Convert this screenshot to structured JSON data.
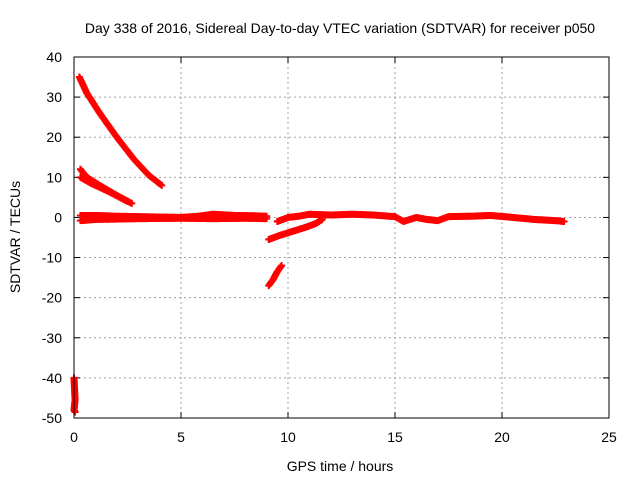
{
  "chart_data": {
    "type": "scatter",
    "title": "Day 338 of 2016, Sidereal Day-to-day VTEC variation (SDTVAR) for receiver p050",
    "xlabel": "GPS time / hours",
    "ylabel": "SDTVAR / TECUs",
    "xlim": [
      0,
      25
    ],
    "ylim": [
      -50,
      40
    ],
    "x_ticks": [
      "0",
      "5",
      "10",
      "15",
      "20",
      "25"
    ],
    "y_ticks": [
      "-50",
      "-40",
      "-30",
      "-20",
      "-10",
      "0",
      "10",
      "20",
      "30",
      "40"
    ],
    "grid": true,
    "marker": "plus",
    "color": "#ff0000",
    "series": [
      {
        "points": [
          [
            0.25,
            35
          ],
          [
            0.6,
            31
          ],
          [
            1.2,
            26
          ],
          [
            2.0,
            20
          ],
          [
            2.8,
            14.5
          ],
          [
            3.5,
            10.5
          ],
          [
            4.1,
            8
          ]
        ]
      },
      {
        "points": [
          [
            0.3,
            12
          ],
          [
            0.6,
            10
          ],
          [
            1.2,
            8
          ],
          [
            2.0,
            5.5
          ],
          [
            2.7,
            3.5
          ]
        ]
      },
      {
        "points": [
          [
            0.3,
            10
          ],
          [
            0.8,
            8.5
          ],
          [
            1.6,
            6.5
          ],
          [
            2.5,
            4
          ]
        ]
      },
      {
        "points": [
          [
            0.3,
            0.5
          ],
          [
            1,
            0.5
          ],
          [
            2,
            0.3
          ],
          [
            3,
            0.2
          ],
          [
            4,
            0.1
          ],
          [
            5,
            0
          ],
          [
            5.8,
            0.3
          ],
          [
            6.5,
            0.8
          ],
          [
            7.5,
            0.5
          ],
          [
            8.5,
            0.4
          ],
          [
            9.0,
            0.3
          ]
        ]
      },
      {
        "points": [
          [
            0.3,
            -0.8
          ],
          [
            1,
            -0.5
          ],
          [
            3,
            -0.3
          ],
          [
            5,
            -0.2
          ],
          [
            6.5,
            -0.3
          ],
          [
            8,
            -0.2
          ],
          [
            9,
            -0.3
          ]
        ]
      },
      {
        "points": [
          [
            9.1,
            -5.5
          ],
          [
            9.6,
            -4.5
          ],
          [
            10.2,
            -3.5
          ],
          [
            10.8,
            -2.5
          ],
          [
            11.3,
            -1.5
          ],
          [
            11.6,
            -0.5
          ]
        ]
      },
      {
        "points": [
          [
            9.1,
            -17
          ],
          [
            9.3,
            -15.5
          ],
          [
            9.5,
            -13.5
          ],
          [
            9.7,
            -12
          ]
        ]
      },
      {
        "points": [
          [
            9.5,
            -1
          ],
          [
            10,
            0
          ],
          [
            10.5,
            0.3
          ],
          [
            11,
            0.8
          ],
          [
            12,
            0.6
          ],
          [
            13,
            0.8
          ],
          [
            14,
            0.6
          ],
          [
            15,
            0.2
          ],
          [
            15.4,
            -1
          ],
          [
            16,
            0
          ],
          [
            16.5,
            -0.5
          ],
          [
            17,
            -0.8
          ],
          [
            17.5,
            0.2
          ],
          [
            18.5,
            0.3
          ],
          [
            19.5,
            0.5
          ],
          [
            20.5,
            0
          ],
          [
            21.5,
            -0.5
          ],
          [
            22.5,
            -0.8
          ],
          [
            22.9,
            -1
          ]
        ]
      },
      {
        "points": [
          [
            0.0,
            -40
          ],
          [
            0.05,
            -45.5
          ],
          [
            0.0,
            -48
          ],
          [
            0.05,
            -48.5
          ]
        ]
      }
    ]
  }
}
